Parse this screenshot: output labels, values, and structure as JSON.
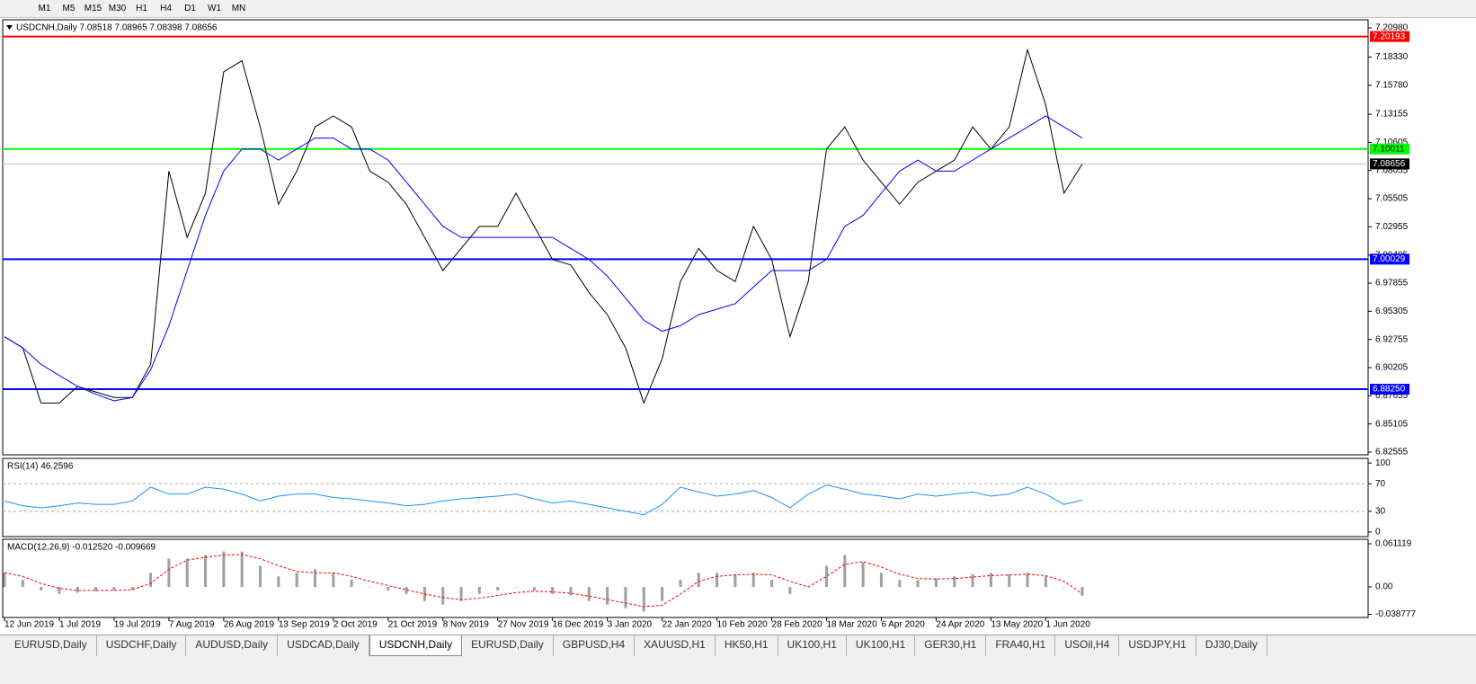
{
  "toolbar": {
    "buttons": [
      "M1",
      "M5",
      "M15",
      "M30",
      "H1",
      "H4",
      "D1",
      "W1",
      "MN"
    ]
  },
  "tabs": [
    {
      "label": "EURUSD,Daily",
      "active": false
    },
    {
      "label": "USDCHF,Daily",
      "active": false
    },
    {
      "label": "AUDUSD,Daily",
      "active": false
    },
    {
      "label": "USDCAD,Daily",
      "active": false
    },
    {
      "label": "USDCNH,Daily",
      "active": true
    },
    {
      "label": "EURUSD,Daily",
      "active": false
    },
    {
      "label": "GBPUSD,H4",
      "active": false
    },
    {
      "label": "XAUUSD,H1",
      "active": false
    },
    {
      "label": "HK50,H1",
      "active": false
    },
    {
      "label": "UK100,H1",
      "active": false
    },
    {
      "label": "UK100,H1",
      "active": false
    },
    {
      "label": "GER30,H1",
      "active": false
    },
    {
      "label": "FRA40,H1",
      "active": false
    },
    {
      "label": "USOil,H4",
      "active": false
    },
    {
      "label": "USDJPY,H1",
      "active": false
    },
    {
      "label": "DJ30,Daily",
      "active": false
    }
  ],
  "chart_data": [
    {
      "type": "line",
      "title": "USDCNH,Daily  7.08518 7.08965 7.08398 7.08656",
      "categories": [
        "12 Jun 2019",
        null,
        null,
        "1 Jul 2019",
        null,
        null,
        "19 Jul 2019",
        null,
        null,
        "7 Aug 2019",
        null,
        null,
        "26 Aug 2019",
        null,
        null,
        "13 Sep 2019",
        null,
        null,
        "2 Oct 2019",
        null,
        null,
        "21 Oct 2019",
        null,
        null,
        "8 Nov 2019",
        null,
        null,
        "27 Nov 2019",
        null,
        null,
        "16 Dec 2019",
        null,
        null,
        "3 Jan 2020",
        null,
        null,
        "22 Jan 2020",
        null,
        null,
        "10 Feb 2020",
        null,
        null,
        "28 Feb 2020",
        null,
        null,
        "18 Mar 2020",
        null,
        null,
        "6 Apr 2020",
        null,
        null,
        "24 Apr 2020",
        null,
        null,
        "13 May 2020",
        null,
        null,
        "1 Jun 2020",
        null,
        null
      ],
      "series": [
        {
          "color": "#000000",
          "values": [
            6.93,
            6.92,
            6.87,
            6.87,
            6.885,
            6.88,
            6.875,
            6.875,
            6.905,
            7.08,
            7.02,
            7.06,
            7.17,
            7.18,
            7.12,
            7.05,
            7.08,
            7.12,
            7.13,
            7.12,
            7.08,
            7.07,
            7.05,
            7.02,
            6.99,
            7.01,
            7.03,
            7.03,
            7.06,
            7.03,
            7.0,
            6.995,
            6.97,
            6.95,
            6.92,
            6.87,
            6.91,
            6.98,
            7.01,
            6.99,
            6.98,
            7.03,
            7.0,
            6.93,
            6.98,
            7.1,
            7.12,
            7.09,
            7.07,
            7.05,
            7.07,
            7.08,
            7.09,
            7.12,
            7.1,
            7.12,
            7.19,
            7.14,
            7.06,
            7.08656
          ]
        },
        {
          "color": "#0000ff",
          "values": [
            6.93,
            6.92,
            6.905,
            6.895,
            6.885,
            6.878,
            6.872,
            6.875,
            6.9,
            6.94,
            6.99,
            7.04,
            7.08,
            7.1,
            7.1,
            7.09,
            7.1,
            7.11,
            7.11,
            7.1,
            7.1,
            7.09,
            7.07,
            7.05,
            7.03,
            7.02,
            7.02,
            7.02,
            7.02,
            7.02,
            7.02,
            7.01,
            7.0,
            6.985,
            6.965,
            6.945,
            6.935,
            6.94,
            6.95,
            6.955,
            6.96,
            6.975,
            6.99,
            6.99,
            6.99,
            7.0,
            7.03,
            7.04,
            7.06,
            7.08,
            7.09,
            7.08,
            7.08,
            7.09,
            7.1,
            7.11,
            7.12,
            7.13,
            7.12,
            7.11
          ]
        }
      ],
      "ylim": [
        6.8231,
        7.2171
      ],
      "yticks": [
        {
          "value": 7.2098,
          "label": "7.20980"
        },
        {
          "value": 7.1833,
          "label": "7.18330"
        },
        {
          "value": 7.1578,
          "label": "7.15780"
        },
        7.13155,
        7.10605,
        7.08055,
        7.05505,
        7.02955,
        7.00405,
        6.97855,
        6.95305,
        6.92755,
        6.90205,
        6.87655,
        6.85105,
        6.82555
      ],
      "hlines": [
        {
          "value": 7.20193,
          "color": "#ff0000"
        },
        {
          "value": 7.10011,
          "color": "#00ff00"
        },
        {
          "value": 7.00029,
          "color": "#0000ff"
        },
        {
          "value": 6.8825,
          "label": "6.88250",
          "color": "#0000ff"
        }
      ],
      "last": 7.08656
    },
    {
      "type": "line",
      "title": "RSI(14) 46.2596",
      "series": [
        {
          "color": "#1e90ff",
          "values": [
            45,
            38,
            35,
            38,
            42,
            40,
            40,
            45,
            65,
            55,
            55,
            65,
            62,
            55,
            45,
            52,
            55,
            55,
            50,
            48,
            45,
            42,
            38,
            40,
            45,
            48,
            50,
            52,
            55,
            48,
            42,
            45,
            40,
            35,
            30,
            25,
            40,
            65,
            58,
            52,
            55,
            60,
            50,
            35,
            55,
            68,
            62,
            55,
            52,
            48,
            55,
            52,
            55,
            58,
            52,
            55,
            65,
            55,
            40,
            46.2596
          ]
        }
      ],
      "ylim": [
        -6.7,
        106.7
      ],
      "yticks": [
        0,
        30,
        70,
        100
      ]
    },
    {
      "type": "bar",
      "title": "MACD(12,26,9) -0.012520 -0.009669",
      "series": [
        {
          "type": "bar",
          "color": "#a0a0a0",
          "values": [
            0.02,
            0.01,
            -0.005,
            -0.01,
            -0.008,
            -0.006,
            -0.005,
            -0.004,
            0.02,
            0.04,
            0.04,
            0.045,
            0.05,
            0.05,
            0.03,
            0.015,
            0.02,
            0.025,
            0.02,
            0.01,
            0.0,
            -0.005,
            -0.01,
            -0.02,
            -0.025,
            -0.02,
            -0.01,
            -0.005,
            0.0,
            -0.005,
            -0.01,
            -0.012,
            -0.02,
            -0.025,
            -0.03,
            -0.035,
            -0.02,
            0.01,
            0.02,
            0.02,
            0.018,
            0.02,
            0.01,
            -0.01,
            0.0,
            0.03,
            0.045,
            0.035,
            0.02,
            0.01,
            0.01,
            0.012,
            0.015,
            0.018,
            0.02,
            0.018,
            0.02,
            0.015,
            0.0,
            -0.01252
          ]
        },
        {
          "type": "line",
          "dashed": true,
          "color": "#ff0000",
          "values": [
            0.02,
            0.015,
            0.005,
            -0.002,
            -0.005,
            -0.005,
            -0.005,
            -0.004,
            0.005,
            0.025,
            0.038,
            0.042,
            0.045,
            0.046,
            0.04,
            0.03,
            0.022,
            0.02,
            0.02,
            0.015,
            0.008,
            0.002,
            -0.004,
            -0.01,
            -0.015,
            -0.018,
            -0.016,
            -0.012,
            -0.008,
            -0.006,
            -0.007,
            -0.009,
            -0.013,
            -0.018,
            -0.023,
            -0.028,
            -0.026,
            -0.01,
            0.008,
            0.015,
            0.017,
            0.018,
            0.017,
            0.008,
            0.0,
            0.015,
            0.032,
            0.036,
            0.028,
            0.018,
            0.012,
            0.011,
            0.012,
            0.014,
            0.016,
            0.017,
            0.018,
            0.016,
            0.008,
            -0.009669
          ]
        }
      ],
      "ylim": [
        -0.0433,
        0.0675
      ],
      "yticks": [
        0.061119,
        {
          "value": 0,
          "label": "0.00"
        },
        -0.038777
      ]
    }
  ]
}
